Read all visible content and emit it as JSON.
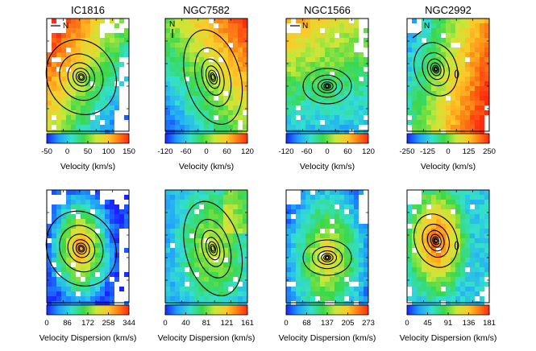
{
  "figure": {
    "galaxies": [
      {
        "name": "IC1816",
        "north": "N",
        "north_orientation": "horizontal-left",
        "velocity": {
          "axis_label": "Velocity (km/s)",
          "ticks": [
            "-50",
            "0",
            "50",
            "100",
            "150"
          ],
          "range": [
            -50,
            150
          ]
        },
        "dispersion": {
          "axis_label": "Velocity Dispersion (km/s)",
          "ticks": [
            "0",
            "86",
            "172",
            "258",
            "344"
          ],
          "range": [
            0,
            344
          ]
        }
      },
      {
        "name": "NGC7582",
        "north": "N",
        "north_orientation": "vertical",
        "velocity": {
          "axis_label": "Velocity (km/s)",
          "ticks": [
            "-120",
            "-60",
            "0",
            "60",
            "120"
          ],
          "range": [
            -120,
            120
          ]
        },
        "dispersion": {
          "axis_label": "Velocity Dispersion (km/s)",
          "ticks": [
            "0",
            "40",
            "81",
            "121",
            "161"
          ],
          "range": [
            0,
            161
          ]
        }
      },
      {
        "name": "NGC1566",
        "north": "N",
        "north_orientation": "horizontal-left",
        "velocity": {
          "axis_label": "Velocity (km/s)",
          "ticks": [
            "-120",
            "-60",
            "0",
            "60",
            "120"
          ],
          "range": [
            -120,
            120
          ]
        },
        "dispersion": {
          "axis_label": "Velocity Dispersion (km/s)",
          "ticks": [
            "0",
            "68",
            "137",
            "205",
            "273"
          ],
          "range": [
            0,
            273
          ]
        }
      },
      {
        "name": "NGC2992",
        "north": "N",
        "north_orientation": "diagonal",
        "velocity": {
          "axis_label": "Velocity (km/s)",
          "ticks": [
            "-250",
            "-125",
            "0",
            "125",
            "250"
          ],
          "range": [
            -250,
            250
          ]
        },
        "dispersion": {
          "axis_label": "Velocity Dispersion (km/s)",
          "ticks": [
            "0",
            "45",
            "91",
            "136",
            "181"
          ],
          "range": [
            0,
            181
          ]
        }
      }
    ],
    "colormap": [
      "#1a23ff",
      "#1f9bff",
      "#33e0d0",
      "#3ad84a",
      "#c8e83a",
      "#ffc828",
      "#ff7a14",
      "#ff2a10"
    ]
  }
}
